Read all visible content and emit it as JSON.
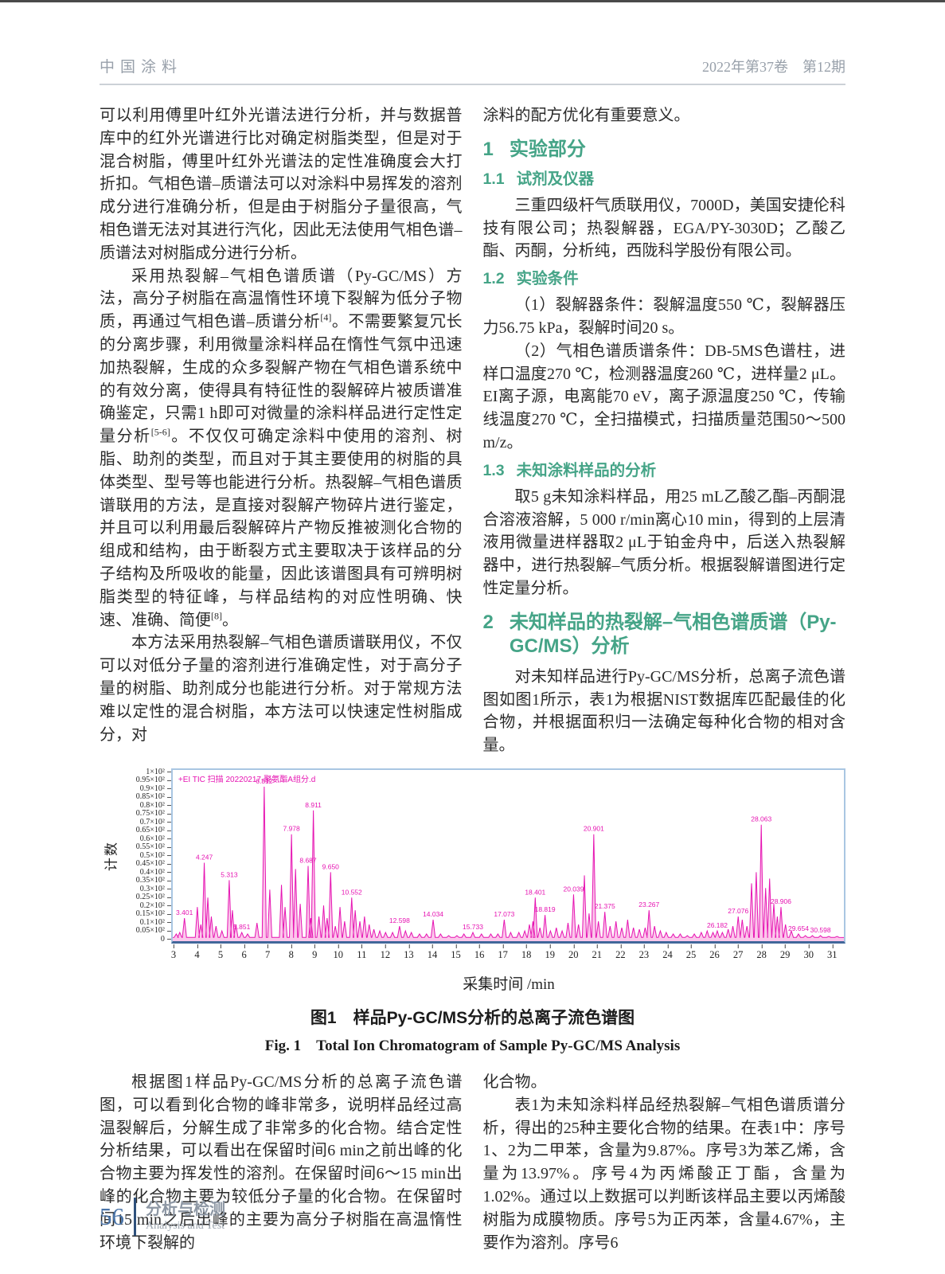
{
  "header": {
    "journal": "中国涂料",
    "issue": "2022年第37卷　第12期"
  },
  "left_col": {
    "p1": "可以利用傅里叶红外光谱法进行分析，并与数据普库中的红外光谱进行比对确定树脂类型，但是对于混合树脂，傅里叶红外光谱法的定性准确度会大打折扣。气相色谱–质谱法可以对涂料中易挥发的溶剂成分进行准确分析，但是由于树脂分子量很高，气相色谱无法对其进行汽化，因此无法使用气相色谱–质谱法对树脂成分进行分析。",
    "p2": "采用热裂解–气相色谱质谱（Py-GC/MS）方法，高分子树脂在高温惰性环境下裂解为低分子物质，再通过气相色谱–质谱分析[4]。不需要繁复冗长的分离步骤，利用微量涂料样品在惰性气氛中迅速加热裂解，生成的众多裂解产物在气相色谱系统中的有效分离，使得具有特征性的裂解碎片被质谱准确鉴定，只需1 h即可对微量的涂料样品进行定性定量分析[5-6]。不仅仅可确定涂料中使用的溶剂、树脂、助剂的类型，而且对于其主要使用的树脂的具体类型、型号等也能进行分析。热裂解–气相色谱质谱联用的方法，是直接对裂解产物碎片进行鉴定，并且可以利用最后裂解碎片产物反推被测化合物的组成和结构，由于断裂方式主要取决于该样品的分子结构及所吸收的能量，因此该谱图具有可辨明树脂类型的特征峰，与样品结构的对应性明确、快速、准确、简便[8]。",
    "p3": "本方法采用热裂解–气相色谱质谱联用仪，不仅可以对低分子量的溶剂进行准确定性，对于高分子量的树脂、助剂成分也能进行分析。对于常规方法难以定性的混合树脂，本方法可以快速定性树脂成分，对"
  },
  "right_col": {
    "p0": "涂料的配方优化有重要意义。",
    "s1": {
      "num": "1",
      "title": "实验部分"
    },
    "s1_1": {
      "num": "1.1",
      "title": "试剂及仪器"
    },
    "p1": "三重四级杆气质联用仪，7000D，美国安捷伦科技有限公司；热裂解器，EGA/PY-3030D；乙酸乙酯、丙酮，分析纯，西陇科学股份有限公司。",
    "s1_2": {
      "num": "1.2",
      "title": "实验条件"
    },
    "p2": "（1）裂解器条件：裂解温度550 ℃，裂解器压力56.75 kPa，裂解时间20 s。",
    "p3": "（2）气相色谱质谱条件：DB-5MS色谱柱，进样口温度270 ℃，检测器温度260 ℃，进样量2 μL。EI离子源，电离能70 eV，离子源温度250 ℃，传输线温度270 ℃，全扫描模式，扫描质量范围50～500 m/z。",
    "s1_3": {
      "num": "1.3",
      "title": "未知涂料样品的分析"
    },
    "p4": "取5 g未知涂料样品，用25 mL乙酸乙酯–丙酮混合溶液溶解，5 000 r/min离心10 min，得到的上层清液用微量进样器取2 μL于铂金舟中，后送入热裂解器中，进行热裂解–气质分析。根据裂解谱图进行定性定量分析。",
    "s2": {
      "num": "2",
      "title": "未知样品的热裂解–气相色谱质谱（Py-GC/MS）分析"
    },
    "p5": "对未知样品进行Py-GC/MS分析，总离子流色谱图如图1所示，表1为根据NIST数据库匹配最佳的化合物，并根据面积归一法确定每种化合物的相对含量。"
  },
  "figure": {
    "caption_cn": "图1　样品Py-GC/MS分析的总离子流色谱图",
    "caption_en": "Fig. 1　Total Ion Chromatogram of Sample Py-GC/MS Analysis"
  },
  "bottom_left": {
    "p1": "根据图1样品Py-GC/MS分析的总离子流色谱图，可以看到化合物的峰非常多，说明样品经过高温裂解后，分解生成了非常多的化合物。结合定性分析结果，可以看出在保留时间6 min之前出峰的化合物主要为挥发性的溶剂。在保留时间6～15 min出峰的化合物主要为较低分子量的化合物。在保留时间15 min之后出峰的主要为高分子树脂在高温惰性环境下裂解的"
  },
  "bottom_right": {
    "p1": "化合物。",
    "p2": "表1为未知涂料样品经热裂解–气相色谱质谱分析，得出的25种主要化合物的结果。在表1中：序号1、2为二甲苯，含量为9.87%。序号3为苯乙烯，含量为13.97%。序号4为丙烯酸正丁酯，含量为1.02%。通过以上数据可以判断该样品主要以丙烯酸树脂为成膜物质。序号5为正丙苯，含量4.67%，主要作为溶剂。序号6"
  },
  "footer": {
    "page_number": "56",
    "section_cn": "分析与检测",
    "section_en": "Analysis and Test"
  },
  "chart_data": {
    "type": "line",
    "title": "+EI TIC 扫描 20220217-聚氨酯A组分.d",
    "xlabel": "采集时间 /min",
    "ylabel": "计数",
    "xlim": [
      2.9,
      31.6
    ],
    "ylim": [
      0,
      100
    ],
    "grid": false,
    "legend": "none",
    "line_color": "#e614b2",
    "fill_color": "rgba(246,130,210,0.45)",
    "x_ticks": [
      3,
      4,
      5,
      6,
      7,
      8,
      9,
      10,
      11,
      12,
      13,
      14,
      15,
      16,
      17,
      18,
      19,
      20,
      21,
      22,
      23,
      24,
      25,
      26,
      27,
      28,
      29,
      30,
      31
    ],
    "y_ticks_top_down": [
      "1×10²",
      "0.95×10²",
      "0.9×10²",
      "0.85×10²",
      "0.8×10²",
      "0.75×10²",
      "0.7×10²",
      "0.65×10²",
      "0.6×10²",
      "0.55×10²",
      "0.5×10²",
      "0.45×10²",
      "0.4×10²",
      "0.35×10²",
      "0.3×10²",
      "0.25×10²",
      "0.2×10²",
      "0.15×10²",
      "0.1×10²",
      "0.05×10²",
      "0"
    ],
    "peaks": [
      {
        "t": 3.05,
        "h": 3
      },
      {
        "t": 3.2,
        "h": 4
      },
      {
        "t": 3.401,
        "h": 13,
        "l": "3.401"
      },
      {
        "t": 3.95,
        "h": 20
      },
      {
        "t": 4.1,
        "h": 9
      },
      {
        "t": 4.247,
        "h": 48,
        "l": "4.247"
      },
      {
        "t": 4.4,
        "h": 26
      },
      {
        "t": 4.55,
        "h": 14
      },
      {
        "t": 4.75,
        "h": 8
      },
      {
        "t": 5.0,
        "h": 5
      },
      {
        "t": 5.313,
        "h": 37,
        "l": "5.313"
      },
      {
        "t": 5.45,
        "h": 18
      },
      {
        "t": 5.6,
        "h": 9
      },
      {
        "t": 5.851,
        "h": 4,
        "l": "5.851"
      },
      {
        "t": 6.1,
        "h": 3
      },
      {
        "t": 6.5,
        "h": 10
      },
      {
        "t": 6.812,
        "h": 96,
        "l": "6.812"
      },
      {
        "t": 7.05,
        "h": 31
      },
      {
        "t": 7.55,
        "h": 34
      },
      {
        "t": 7.7,
        "h": 20
      },
      {
        "t": 7.978,
        "h": 66,
        "l": "7.978"
      },
      {
        "t": 8.15,
        "h": 44
      },
      {
        "t": 8.35,
        "h": 22
      },
      {
        "t": 8.687,
        "h": 46,
        "l": "8.687"
      },
      {
        "t": 8.8,
        "h": 13
      },
      {
        "t": 8.911,
        "h": 81,
        "l": "8.911"
      },
      {
        "t": 9.15,
        "h": 14
      },
      {
        "t": 9.35,
        "h": 21
      },
      {
        "t": 9.5,
        "h": 13
      },
      {
        "t": 9.65,
        "h": 42,
        "l": "9.650"
      },
      {
        "t": 9.85,
        "h": 8
      },
      {
        "t": 10.05,
        "h": 20
      },
      {
        "t": 10.25,
        "h": 11
      },
      {
        "t": 10.552,
        "h": 26,
        "l": "10.552"
      },
      {
        "t": 10.7,
        "h": 18
      },
      {
        "t": 10.9,
        "h": 11
      },
      {
        "t": 11.1,
        "h": 14
      },
      {
        "t": 11.3,
        "h": 9
      },
      {
        "t": 11.5,
        "h": 6
      },
      {
        "t": 11.75,
        "h": 5
      },
      {
        "t": 12.0,
        "h": 4
      },
      {
        "t": 12.3,
        "h": 4
      },
      {
        "t": 12.598,
        "h": 8,
        "l": "12.598"
      },
      {
        "t": 12.85,
        "h": 5
      },
      {
        "t": 13.1,
        "h": 4
      },
      {
        "t": 13.45,
        "h": 3
      },
      {
        "t": 13.75,
        "h": 3
      },
      {
        "t": 14.034,
        "h": 12,
        "l": "14.034"
      },
      {
        "t": 14.35,
        "h": 3
      },
      {
        "t": 14.7,
        "h": 2
      },
      {
        "t": 15.05,
        "h": 2
      },
      {
        "t": 15.35,
        "h": 3
      },
      {
        "t": 15.733,
        "h": 4,
        "l": "15.733"
      },
      {
        "t": 16.1,
        "h": 3
      },
      {
        "t": 16.5,
        "h": 3
      },
      {
        "t": 16.8,
        "h": 3
      },
      {
        "t": 17.073,
        "h": 12,
        "l": "17.073"
      },
      {
        "t": 17.35,
        "h": 4
      },
      {
        "t": 17.7,
        "h": 4
      },
      {
        "t": 17.95,
        "h": 5
      },
      {
        "t": 18.15,
        "h": 9
      },
      {
        "t": 18.3,
        "h": 11
      },
      {
        "t": 18.401,
        "h": 26,
        "l": "18.401"
      },
      {
        "t": 18.6,
        "h": 7
      },
      {
        "t": 18.819,
        "h": 15,
        "l": "18.819"
      },
      {
        "t": 19.05,
        "h": 5
      },
      {
        "t": 19.3,
        "h": 7
      },
      {
        "t": 19.55,
        "h": 5
      },
      {
        "t": 19.8,
        "h": 10
      },
      {
        "t": 20.039,
        "h": 28,
        "l": "20.039"
      },
      {
        "t": 20.25,
        "h": 9
      },
      {
        "t": 20.5,
        "h": 40
      },
      {
        "t": 20.7,
        "h": 16
      },
      {
        "t": 20.901,
        "h": 66,
        "l": "20.901"
      },
      {
        "t": 21.1,
        "h": 11
      },
      {
        "t": 21.375,
        "h": 17,
        "l": "21.375"
      },
      {
        "t": 21.6,
        "h": 8
      },
      {
        "t": 21.85,
        "h": 11
      },
      {
        "t": 22.1,
        "h": 7
      },
      {
        "t": 22.35,
        "h": 12
      },
      {
        "t": 22.6,
        "h": 7
      },
      {
        "t": 22.85,
        "h": 6
      },
      {
        "t": 23.1,
        "h": 7
      },
      {
        "t": 23.267,
        "h": 18,
        "l": "23.267"
      },
      {
        "t": 23.5,
        "h": 8
      },
      {
        "t": 23.75,
        "h": 5
      },
      {
        "t": 24.0,
        "h": 4
      },
      {
        "t": 24.3,
        "h": 3
      },
      {
        "t": 24.6,
        "h": 3
      },
      {
        "t": 24.9,
        "h": 2
      },
      {
        "t": 25.2,
        "h": 3
      },
      {
        "t": 25.5,
        "h": 4
      },
      {
        "t": 25.75,
        "h": 5
      },
      {
        "t": 26.0,
        "h": 4
      },
      {
        "t": 26.182,
        "h": 5,
        "l": "26.182"
      },
      {
        "t": 26.4,
        "h": 4
      },
      {
        "t": 26.65,
        "h": 6
      },
      {
        "t": 26.85,
        "h": 8
      },
      {
        "t": 27.076,
        "h": 14,
        "l": "27.076"
      },
      {
        "t": 27.25,
        "h": 12
      },
      {
        "t": 27.45,
        "h": 8
      },
      {
        "t": 27.65,
        "h": 35
      },
      {
        "t": 27.85,
        "h": 42
      },
      {
        "t": 28.063,
        "h": 72,
        "l": "28.063"
      },
      {
        "t": 28.25,
        "h": 32
      },
      {
        "t": 28.42,
        "h": 38
      },
      {
        "t": 28.6,
        "h": 22
      },
      {
        "t": 28.75,
        "h": 14
      },
      {
        "t": 28.906,
        "h": 20,
        "l": "28.906"
      },
      {
        "t": 29.1,
        "h": 9
      },
      {
        "t": 29.35,
        "h": 5
      },
      {
        "t": 29.654,
        "h": 3,
        "l": "29.654"
      },
      {
        "t": 29.95,
        "h": 2
      },
      {
        "t": 30.25,
        "h": 2
      },
      {
        "t": 30.598,
        "h": 2,
        "l": "30.598"
      },
      {
        "t": 30.95,
        "h": 1.5
      },
      {
        "t": 31.3,
        "h": 1.5
      }
    ]
  }
}
